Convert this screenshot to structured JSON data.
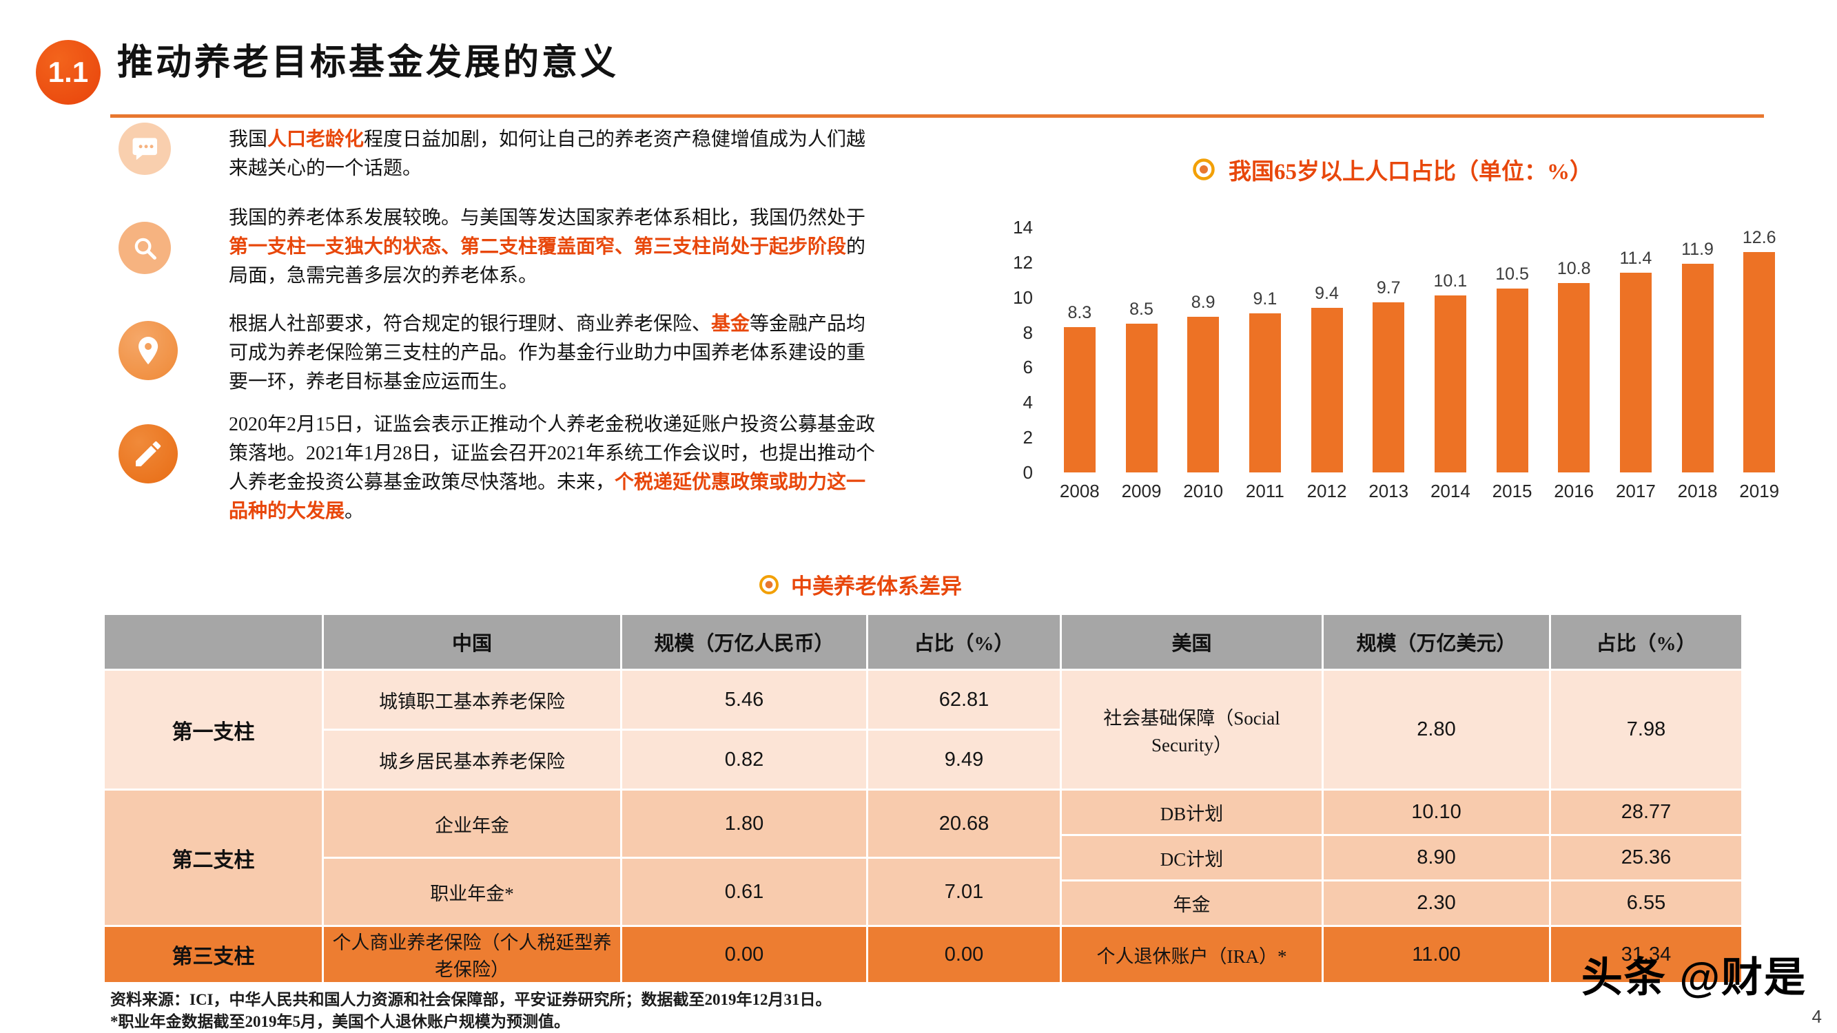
{
  "page": {
    "badge": "1.1",
    "title": "推动养老目标基金发展的意义",
    "page_number": "4",
    "watermark": "头条 @财是"
  },
  "paragraphs": {
    "p1": {
      "s1": "我国",
      "s2": "人口老龄化",
      "s3": "程度日益加剧，如何让自己的养老资产稳健增值成为人们越来越关心的一个话题。"
    },
    "p2": {
      "s1": "我国的养老体系发展较晚。与美国等发达国家养老体系相比，我国仍然处于",
      "s2": "第一支柱一支独大的状态、第二支柱覆盖面窄、第三支柱尚处于起步阶段",
      "s3": "的局面，急需完善多层次的养老体系。"
    },
    "p3": {
      "s1": "根据人社部要求，符合规定的银行理财、商业养老保险、",
      "s2": "基金",
      "s3": "等金融产品均可成为养老保险第三支柱的产品。作为基金行业助力中国养老体系建设的重要一环，养老目标基金应运而生。"
    },
    "p4": {
      "s1": "2020年2月15日，证监会表示正推动个人养老金税收递延账户投资公募基金政策落地。2021年1月28日，证监会召开2021年系统工作会议时，也提出推动个人养老金投资公募基金政策尽快落地。未来，",
      "s2": "个税递延优惠政策或助力这一品种的大发展",
      "s3": "。"
    }
  },
  "chart_data": {
    "type": "bar",
    "title": "我国65岁以上人口占比（单位：%）",
    "categories": [
      "2008",
      "2009",
      "2010",
      "2011",
      "2012",
      "2013",
      "2014",
      "2015",
      "2016",
      "2017",
      "2018",
      "2019"
    ],
    "values": [
      8.3,
      8.5,
      8.9,
      9.1,
      9.4,
      9.7,
      10.1,
      10.5,
      10.8,
      11.4,
      11.9,
      12.6
    ],
    "ylim": [
      0,
      14
    ],
    "yticks": [
      0,
      2,
      4,
      6,
      8,
      10,
      12,
      14
    ],
    "bar_color": "#ed7225",
    "grid": false,
    "legend": false
  },
  "table": {
    "section_title": "中美养老体系差异",
    "headers": [
      "",
      "中国",
      "规模（万亿人民币）",
      "占比（%）",
      "美国",
      "规模（万亿美元）",
      "占比（%）"
    ],
    "pillar1": {
      "label": "第一支柱",
      "cn_rows": [
        {
          "name": "城镇职工基本养老保险",
          "scale": "5.46",
          "share": "62.81"
        },
        {
          "name": "城乡居民基本养老保险",
          "scale": "0.82",
          "share": "9.49"
        }
      ],
      "us": {
        "name": "社会基础保障（Social Security）",
        "scale": "2.80",
        "share": "7.98"
      }
    },
    "pillar2": {
      "label": "第二支柱",
      "cn_rows": [
        {
          "name": "企业年金",
          "scale": "1.80",
          "share": "20.68"
        },
        {
          "name": "职业年金*",
          "scale": "0.61",
          "share": "7.01"
        }
      ],
      "us_rows": [
        {
          "name": "DB计划",
          "scale": "10.10",
          "share": "28.77"
        },
        {
          "name": "DC计划",
          "scale": "8.90",
          "share": "25.36"
        },
        {
          "name": "年金",
          "scale": "2.30",
          "share": "6.55"
        }
      ]
    },
    "pillar3": {
      "label": "第三支柱",
      "cn": {
        "name": "个人商业养老保险（个人税延型养老保险）",
        "scale": "0.00",
        "share": "0.00"
      },
      "us": {
        "name": "个人退休账户（IRA）*",
        "scale": "11.00",
        "share": "31.34"
      }
    }
  },
  "footer": {
    "source": "资料来源：ICI，中华人民共和国人力资源和社会保障部，平安证券研究所；数据截至2019年12月31日。",
    "note": "*职业年金数据截至2019年5月，美国个人退休账户规模为预测值。"
  }
}
